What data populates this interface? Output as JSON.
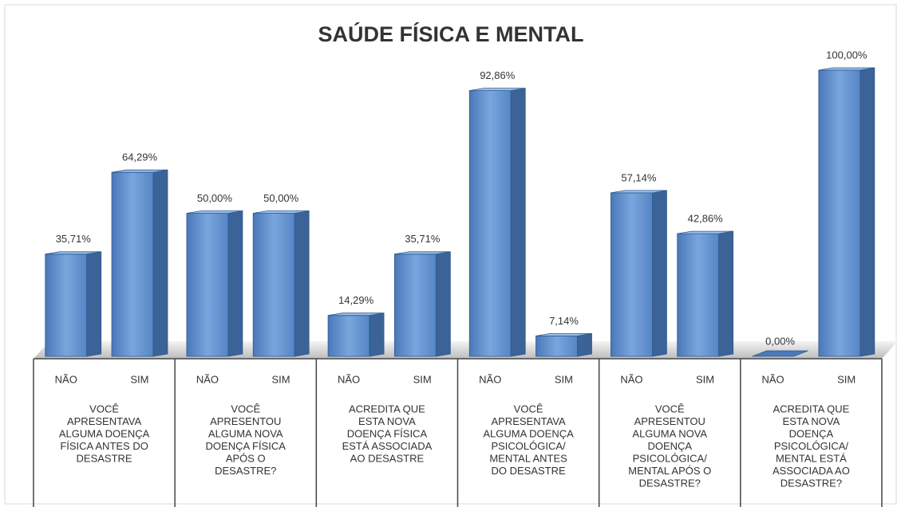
{
  "chart_data": {
    "type": "bar3d",
    "title": "SAÚDE FÍSICA E MENTAL",
    "categories": [
      "NÃO",
      "SIM",
      "NÃO",
      "SIM",
      "NÃO",
      "SIM",
      "NÃO",
      "SIM",
      "NÃO",
      "SIM",
      "NÃO",
      "SIM"
    ],
    "values": [
      35.71,
      64.29,
      50,
      50,
      14.29,
      35.71,
      92.86,
      7.14,
      57.14,
      42.86,
      0,
      100
    ],
    "value_labels": [
      "35,71%",
      "64,29%",
      "50,00%",
      "50,00%",
      "14,29%",
      "35,71%",
      "92,86%",
      "7,14%",
      "57,14%",
      "42,86%",
      "0,00%",
      "100,00%"
    ],
    "group_labels": [
      [
        "VOCÊ",
        "APRESENTAVA",
        "ALGUMA DOENÇA",
        "FÍSICA ANTES DO",
        "DESASTRE"
      ],
      [
        "VOCÊ",
        "APRESENTOU",
        "ALGUMA NOVA",
        "DOENÇA FÍSICA",
        "APÓS O",
        "DESASTRE?"
      ],
      [
        "ACREDITA QUE",
        "ESTA NOVA",
        "DOENÇA FÍSICA",
        "ESTÁ ASSOCIADA",
        "AO DESASTRE"
      ],
      [
        "VOCÊ",
        "APRESENTAVA",
        "ALGUMA DOENÇA",
        "PSICOLÓGICA/",
        "MENTAL ANTES",
        "DO DESASTRE"
      ],
      [
        "VOCÊ",
        "APRESENTOU",
        "ALGUMA NOVA",
        "DOENÇA",
        "PSICOLÓGICA/",
        "MENTAL APÓS O",
        "DESASTRE?"
      ],
      [
        "ACREDITA QUE",
        "ESTA NOVA",
        "DOENÇA",
        "PSICOLÓGICA/",
        "MENTAL ESTÁ",
        "ASSOCIADA AO",
        "DESASTRE?"
      ]
    ],
    "color": "#5b8fd0"
  }
}
